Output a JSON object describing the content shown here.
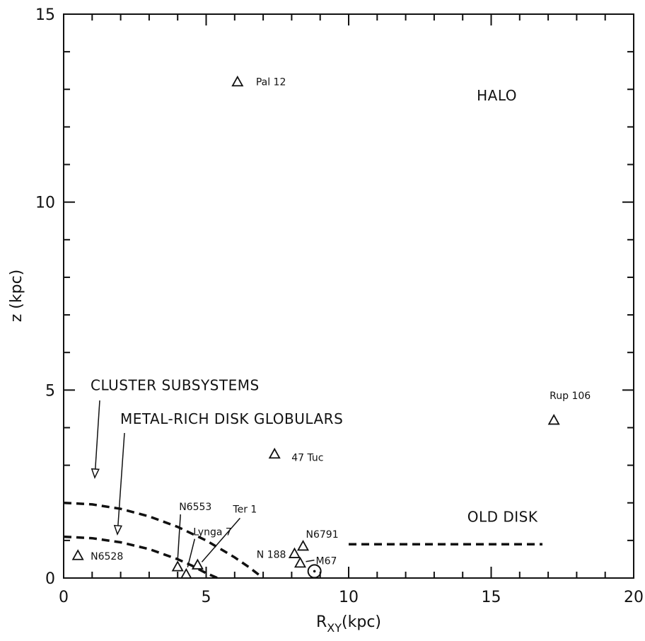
{
  "chart_data": {
    "type": "scatter",
    "xlabel": "R_XY(kpc)",
    "xlabel_main": "R",
    "xlabel_sub": "XY",
    "xlabel_unit": "(kpc)",
    "ylabel": "z (kpc)",
    "xlim": [
      0,
      20
    ],
    "ylim": [
      0,
      15
    ],
    "x_ticks": [
      0,
      5,
      10,
      15,
      20
    ],
    "y_ticks": [
      0,
      5,
      10,
      15
    ],
    "x_tick_labels": [
      "0",
      "5",
      "10",
      "15",
      "20"
    ],
    "y_tick_labels": [
      "0",
      "5",
      "10",
      "15"
    ],
    "grid": false,
    "points": [
      {
        "label": "Pal 12",
        "x": 6.1,
        "y": 13.2,
        "marker": "triangle"
      },
      {
        "label": "Rup 106",
        "x": 17.2,
        "y": 4.2,
        "marker": "triangle"
      },
      {
        "label": "47 Tuc",
        "x": 7.4,
        "y": 3.3,
        "marker": "triangle"
      },
      {
        "label": "N6791",
        "x": 8.4,
        "y": 0.85,
        "marker": "triangle"
      },
      {
        "label": "N 188",
        "x": 8.1,
        "y": 0.65,
        "marker": "triangle"
      },
      {
        "label": "M67",
        "x": 8.3,
        "y": 0.4,
        "marker": "triangle"
      },
      {
        "label": "N6528",
        "x": 0.5,
        "y": 0.6,
        "marker": "triangle"
      },
      {
        "label": "N6553",
        "x": 4.0,
        "y": 0.3,
        "marker": "triangle"
      },
      {
        "label": "Lynga 7",
        "x": 4.3,
        "y": 0.1,
        "marker": "triangle"
      },
      {
        "label": "Ter 1",
        "x": 4.7,
        "y": 0.35,
        "marker": "triangle"
      },
      {
        "label": "",
        "x": 8.8,
        "y": 0.18,
        "marker": "sun"
      }
    ],
    "curves": [
      {
        "name": "cluster-subsystems-boundary",
        "style": "dashed",
        "x": [
          0,
          1,
          2,
          3,
          4,
          5,
          6,
          6.5,
          7.0
        ],
        "y": [
          2.0,
          1.96,
          1.84,
          1.64,
          1.36,
          1.0,
          0.55,
          0.29,
          0.0
        ]
      },
      {
        "name": "metal-rich-disk-globulars-boundary",
        "style": "dashed",
        "x": [
          0,
          1,
          2,
          3,
          4,
          4.5,
          5.0,
          5.4
        ],
        "y": [
          1.1,
          1.06,
          0.95,
          0.77,
          0.5,
          0.33,
          0.13,
          0.0
        ]
      },
      {
        "name": "old-disk-line",
        "style": "dashed",
        "x": [
          10,
          16.8
        ],
        "y": [
          0.9,
          0.9
        ]
      }
    ],
    "region_labels": [
      {
        "text": "HALO",
        "x": 15.2,
        "y": 12.7
      },
      {
        "text": "OLD DISK",
        "x": 15.4,
        "y": 1.5
      },
      {
        "text": "CLUSTER SUBSYSTEMS",
        "x": 1.0,
        "y": 5.0
      },
      {
        "text": "METAL-RICH DISK GLOBULARS",
        "x": 2.0,
        "y": 4.1
      }
    ]
  }
}
